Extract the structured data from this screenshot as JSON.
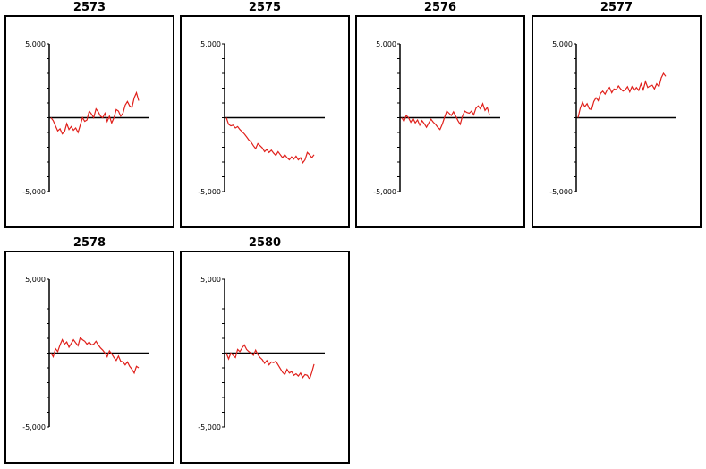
{
  "colors": {
    "series": "#e0201b",
    "axis": "#000000"
  },
  "chart_data": [
    {
      "type": "line",
      "title": "2573",
      "ylim": [
        -5000,
        5000
      ],
      "yticks": [
        "5,000",
        "-5,000"
      ],
      "x": [
        0,
        1,
        2,
        3,
        4,
        5,
        6,
        7,
        8,
        9,
        10,
        11,
        12,
        13,
        14,
        15,
        16,
        17,
        18,
        19,
        20,
        21,
        22,
        23,
        24,
        25,
        26,
        27,
        28,
        29,
        30,
        31,
        32,
        33,
        34,
        35,
        36,
        37,
        38,
        39
      ],
      "values": [
        0,
        -200,
        -550,
        -900,
        -750,
        -1100,
        -950,
        -400,
        -800,
        -600,
        -850,
        -700,
        -1000,
        -500,
        0,
        -250,
        -150,
        450,
        250,
        0,
        600,
        400,
        100,
        0,
        300,
        -250,
        100,
        -350,
        0,
        550,
        450,
        100,
        300,
        850,
        1100,
        800,
        700,
        1350,
        1700,
        1150
      ]
    },
    {
      "type": "line",
      "title": "2575",
      "ylim": [
        -5000,
        5000
      ],
      "yticks": [
        "5,000",
        "-5,000"
      ],
      "x": [
        0,
        1,
        2,
        3,
        4,
        5,
        6,
        7,
        8,
        9,
        10,
        11,
        12,
        13,
        14,
        15,
        16,
        17,
        18,
        19,
        20,
        21,
        22,
        23,
        24,
        25,
        26,
        27,
        28,
        29,
        30,
        31,
        32,
        33,
        34,
        35,
        36,
        37,
        38,
        39
      ],
      "values": [
        0,
        -450,
        -550,
        -500,
        -700,
        -600,
        -800,
        -950,
        -1100,
        -1300,
        -1500,
        -1650,
        -1900,
        -2100,
        -1750,
        -1900,
        -2050,
        -2300,
        -2150,
        -2350,
        -2200,
        -2400,
        -2550,
        -2300,
        -2500,
        -2700,
        -2500,
        -2700,
        -2850,
        -2650,
        -2800,
        -2600,
        -2850,
        -2700,
        -3050,
        -2850,
        -2350,
        -2500,
        -2700,
        -2500
      ]
    },
    {
      "type": "line",
      "title": "2576",
      "ylim": [
        -5000,
        5000
      ],
      "yticks": [
        "5,000",
        "-5,000"
      ],
      "x": [
        0,
        1,
        2,
        3,
        4,
        5,
        6,
        7,
        8,
        9,
        10,
        11,
        12,
        13,
        14,
        15,
        16,
        17,
        18,
        19,
        20,
        21,
        22,
        23,
        24,
        25,
        26,
        27,
        28,
        29,
        30,
        31,
        32,
        33,
        34,
        35,
        36,
        37,
        38,
        39
      ],
      "values": [
        0,
        -250,
        150,
        0,
        -300,
        -50,
        -350,
        -150,
        -500,
        -200,
        -400,
        -650,
        -350,
        -100,
        -300,
        -450,
        -650,
        -800,
        -450,
        0,
        450,
        300,
        150,
        400,
        100,
        -200,
        -450,
        100,
        450,
        350,
        300,
        450,
        200,
        650,
        800,
        600,
        950,
        500,
        700,
        200
      ]
    },
    {
      "type": "line",
      "title": "2577",
      "ylim": [
        -5000,
        5000
      ],
      "yticks": [
        "5,000",
        "-5,000"
      ],
      "x": [
        0,
        1,
        2,
        3,
        4,
        5,
        6,
        7,
        8,
        9,
        10,
        11,
        12,
        13,
        14,
        15,
        16,
        17,
        18,
        19,
        20,
        21,
        22,
        23,
        24,
        25,
        26,
        27,
        28,
        29,
        30,
        31,
        32,
        33,
        34,
        35,
        36,
        37,
        38,
        39
      ],
      "values": [
        0,
        650,
        1050,
        750,
        950,
        600,
        550,
        1100,
        1350,
        1150,
        1650,
        1800,
        1600,
        1900,
        2050,
        1700,
        1950,
        1900,
        2150,
        1950,
        1800,
        1900,
        2100,
        1750,
        2100,
        1850,
        2050,
        1850,
        2300,
        1900,
        2450,
        2050,
        2150,
        2200,
        1950,
        2300,
        2100,
        2700,
        3000,
        2800
      ]
    },
    {
      "type": "line",
      "title": "2578",
      "ylim": [
        -5000,
        5000
      ],
      "yticks": [
        "5,000",
        "-5,000"
      ],
      "x": [
        0,
        1,
        2,
        3,
        4,
        5,
        6,
        7,
        8,
        9,
        10,
        11,
        12,
        13,
        14,
        15,
        16,
        17,
        18,
        19,
        20,
        21,
        22,
        23,
        24,
        25,
        26,
        27,
        28,
        29,
        30,
        31,
        32,
        33,
        34,
        35,
        36,
        37,
        38,
        39
      ],
      "values": [
        0,
        -250,
        300,
        100,
        550,
        900,
        600,
        750,
        400,
        650,
        900,
        700,
        500,
        1050,
        900,
        800,
        600,
        750,
        550,
        600,
        800,
        550,
        350,
        200,
        0,
        -250,
        150,
        -50,
        -300,
        -500,
        -200,
        -550,
        -600,
        -800,
        -600,
        -900,
        -1100,
        -1350,
        -900,
        -1000
      ]
    },
    {
      "type": "line",
      "title": "2580",
      "ylim": [
        -5000,
        5000
      ],
      "yticks": [
        "5,000",
        "-5,000"
      ],
      "x": [
        0,
        1,
        2,
        3,
        4,
        5,
        6,
        7,
        8,
        9,
        10,
        11,
        12,
        13,
        14,
        15,
        16,
        17,
        18,
        19,
        20,
        21,
        22,
        23,
        24,
        25,
        26,
        27,
        28,
        29,
        30,
        31,
        32,
        33,
        34,
        35,
        36,
        37,
        38,
        39
      ],
      "values": [
        0,
        -400,
        0,
        -150,
        -300,
        250,
        100,
        350,
        550,
        250,
        100,
        0,
        -150,
        200,
        -100,
        -300,
        -450,
        -700,
        -500,
        -800,
        -600,
        -650,
        -550,
        -800,
        -1050,
        -1300,
        -1450,
        -1100,
        -1350,
        -1250,
        -1500,
        -1400,
        -1550,
        -1350,
        -1650,
        -1450,
        -1500,
        -1750,
        -1300,
        -750
      ]
    }
  ]
}
